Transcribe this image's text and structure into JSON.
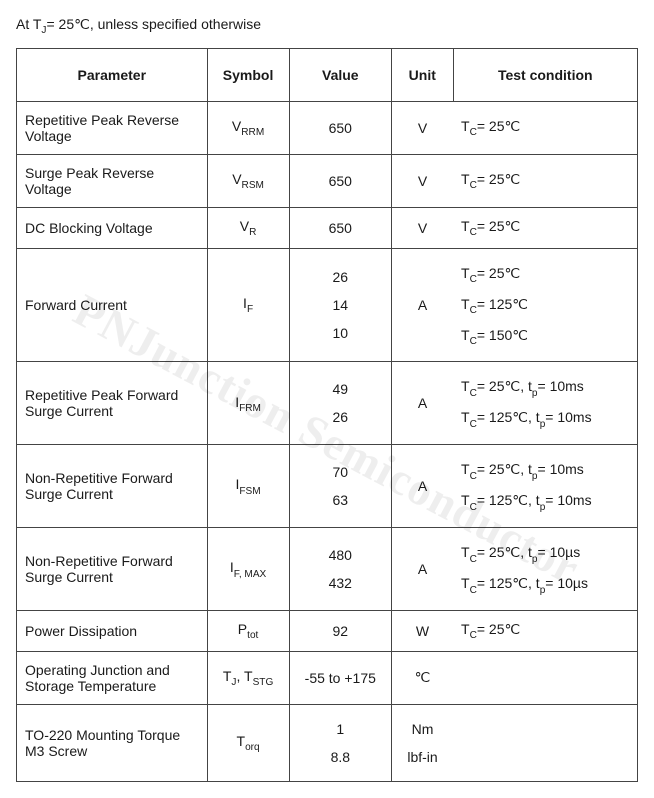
{
  "caption_prefix": "At T",
  "caption_sub": "J",
  "caption_rest": "= 25℃, unless specified otherwise",
  "watermark": "PNJunction Semiconductor",
  "headers": {
    "parameter": "Parameter",
    "symbol": "Symbol",
    "value": "Value",
    "unit": "Unit",
    "condition": "Test condition"
  },
  "rows": {
    "vrrm": {
      "param": "Repetitive Peak Reverse Voltage",
      "sym_main": "V",
      "sym_sub": "RRM",
      "value": "650",
      "unit": "V",
      "cond_pre": "T",
      "cond_sub": "C",
      "cond_post": "= 25℃"
    },
    "vrsm": {
      "param": "Surge Peak Reverse Voltage",
      "sym_main": "V",
      "sym_sub": "RSM",
      "value": "650",
      "unit": "V",
      "cond_pre": "T",
      "cond_sub": "C",
      "cond_post": "= 25℃"
    },
    "vr": {
      "param": "DC Blocking Voltage",
      "sym_main": "V",
      "sym_sub": "R",
      "value": "650",
      "unit": "V",
      "cond_pre": "T",
      "cond_sub": "C",
      "cond_post": "= 25℃"
    },
    "if": {
      "param": "Forward Current",
      "sym_main": "I",
      "sym_sub": "F",
      "values": [
        "26",
        "14",
        "10"
      ],
      "unit": "A",
      "conds": [
        {
          "pre": "T",
          "sub": "C",
          "post": "= 25℃"
        },
        {
          "pre": "T",
          "sub": "C",
          "post": "= 125℃"
        },
        {
          "pre": "T",
          "sub": "C",
          "post": "= 150℃"
        }
      ]
    },
    "ifrm": {
      "param": "Repetitive Peak Forward Surge Current",
      "sym_main": "I",
      "sym_sub": "FRM",
      "values": [
        "49",
        "26"
      ],
      "unit": "A",
      "conds": [
        {
          "pre": "T",
          "sub": "C",
          "mid": "= 25℃, t",
          "sub2": "p",
          "post": "= 10ms"
        },
        {
          "pre": "T",
          "sub": "C",
          "mid": "= 125℃, t",
          "sub2": "p",
          "post": "= 10ms"
        }
      ]
    },
    "ifsm": {
      "param": "Non-Repetitive Forward Surge Current",
      "sym_main": "I",
      "sym_sub": "FSM",
      "values": [
        "70",
        "63"
      ],
      "unit": "A",
      "conds": [
        {
          "pre": "T",
          "sub": "C",
          "mid": "= 25℃, t",
          "sub2": "p",
          "post": "= 10ms"
        },
        {
          "pre": "T",
          "sub": "C",
          "mid": "= 125℃, t",
          "sub2": "p",
          "post": "= 10ms"
        }
      ]
    },
    "ifmax": {
      "param": "Non-Repetitive Forward Surge Current",
      "sym_main": "I",
      "sym_sub": "F, MAX",
      "values": [
        "480",
        "432"
      ],
      "unit": "A",
      "conds": [
        {
          "pre": "T",
          "sub": "C",
          "mid": "= 25℃, t",
          "sub2": "p",
          "post": "= 10µs"
        },
        {
          "pre": "T",
          "sub": "C",
          "mid": "= 125℃, t",
          "sub2": "p",
          "post": "= 10µs"
        }
      ]
    },
    "ptot": {
      "param": "Power Dissipation",
      "sym_main": "P",
      "sym_sub": "tot",
      "value": "92",
      "unit": "W",
      "cond_pre": "T",
      "cond_sub": "C",
      "cond_post": "= 25℃"
    },
    "temp": {
      "param": "Operating Junction and Storage Temperature",
      "sym1_main": "T",
      "sym1_sub": "J",
      "sym_sep": ", ",
      "sym2_main": "T",
      "sym2_sub": "STG",
      "value": "-55 to +175",
      "unit": "℃"
    },
    "torque": {
      "param": "TO-220 Mounting Torque M3 Screw",
      "sym_main": "T",
      "sym_sub": "orq",
      "values": [
        "1",
        "8.8"
      ],
      "units": [
        "Nm",
        "lbf-in"
      ]
    }
  }
}
